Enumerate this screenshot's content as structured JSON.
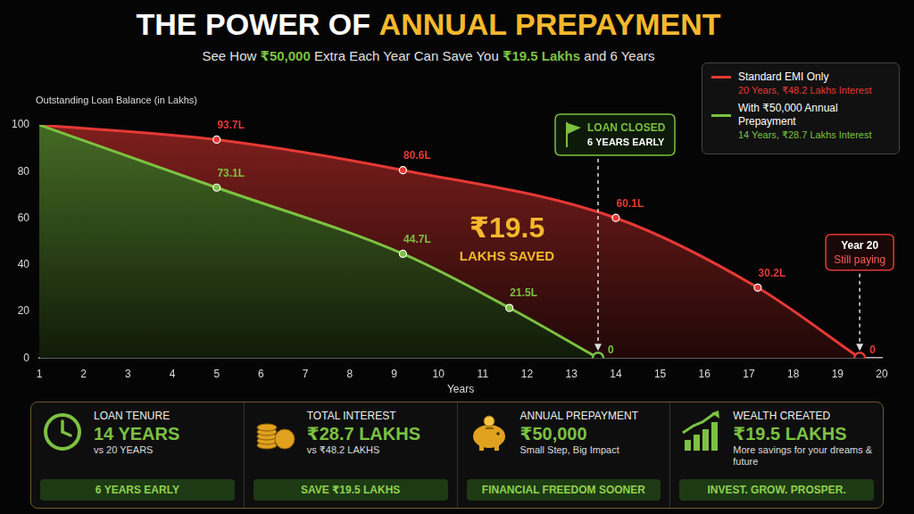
{
  "chart_data": {
    "type": "line",
    "title": [
      "THE POWER OF",
      "ANNUAL PREPAYMENT"
    ],
    "subtitle": [
      "See How ",
      "₹50,000",
      " Extra Each Year Can Save You ",
      "₹19.5 Lakhs",
      " and 6 Years"
    ],
    "ylabel": "Outstanding Loan Balance (in Lakhs)",
    "xlabel": "Years",
    "xlim": [
      1,
      20
    ],
    "xticks": [
      1,
      2,
      3,
      4,
      5,
      6,
      7,
      8,
      9,
      10,
      11,
      12,
      13,
      14,
      15,
      16,
      17,
      18,
      19,
      20
    ],
    "ylim": [
      0,
      100
    ],
    "yticks": [
      0,
      20,
      40,
      60,
      80,
      100
    ],
    "grid": false,
    "legend": "upper right",
    "data_labels": true,
    "series": [
      {
        "name": "Standard EMI Only",
        "note": "20 Years, ₹48.2 Lakhs Interest",
        "color": "#e53935",
        "x": [
          1,
          5,
          9.2,
          14,
          17.2,
          19.5
        ],
        "values": [
          100,
          93.7,
          80.6,
          60.1,
          30.2,
          0
        ],
        "value_labels": [
          null,
          "93.7L",
          "80.6L",
          "60.1L",
          "30.2L",
          "0"
        ]
      },
      {
        "name": "With ₹50,000 Annual Prepayment",
        "note": "14 Years, ₹28.7 Lakhs Interest",
        "color": "#7cc142",
        "x": [
          1,
          5,
          9.2,
          11.6,
          13.6
        ],
        "values": [
          100,
          73.1,
          44.7,
          21.5,
          0
        ],
        "value_labels": [
          null,
          "73.1L",
          "44.7L",
          "21.5L",
          "0"
        ]
      }
    ],
    "annotations": {
      "closed": [
        "LOAN CLOSED",
        "6 YEARS EARLY"
      ],
      "saved": [
        "₹19.5",
        "LAKHS SAVED"
      ],
      "still_paying": [
        "Year 20",
        "Still paying"
      ]
    },
    "cards": [
      {
        "heading": "LOAN TENURE",
        "value": "14 YEARS",
        "note": "vs 20 YEARS",
        "badge": "6 YEARS EARLY"
      },
      {
        "heading": "TOTAL INTEREST",
        "value": "₹28.7 LAKHS",
        "note": "vs ₹48.2 LAKHS",
        "badge": "SAVE ₹19.5 LAKHS"
      },
      {
        "heading": "ANNUAL PREPAYMENT",
        "value": "₹50,000",
        "note": "Small Step, Big Impact",
        "badge": "FINANCIAL FREEDOM SOONER"
      },
      {
        "heading": "WEALTH CREATED",
        "value": "₹19.5 LAKHS",
        "note": "More savings for your dreams & future",
        "badge": "INVEST. GROW. PROSPER."
      }
    ]
  }
}
